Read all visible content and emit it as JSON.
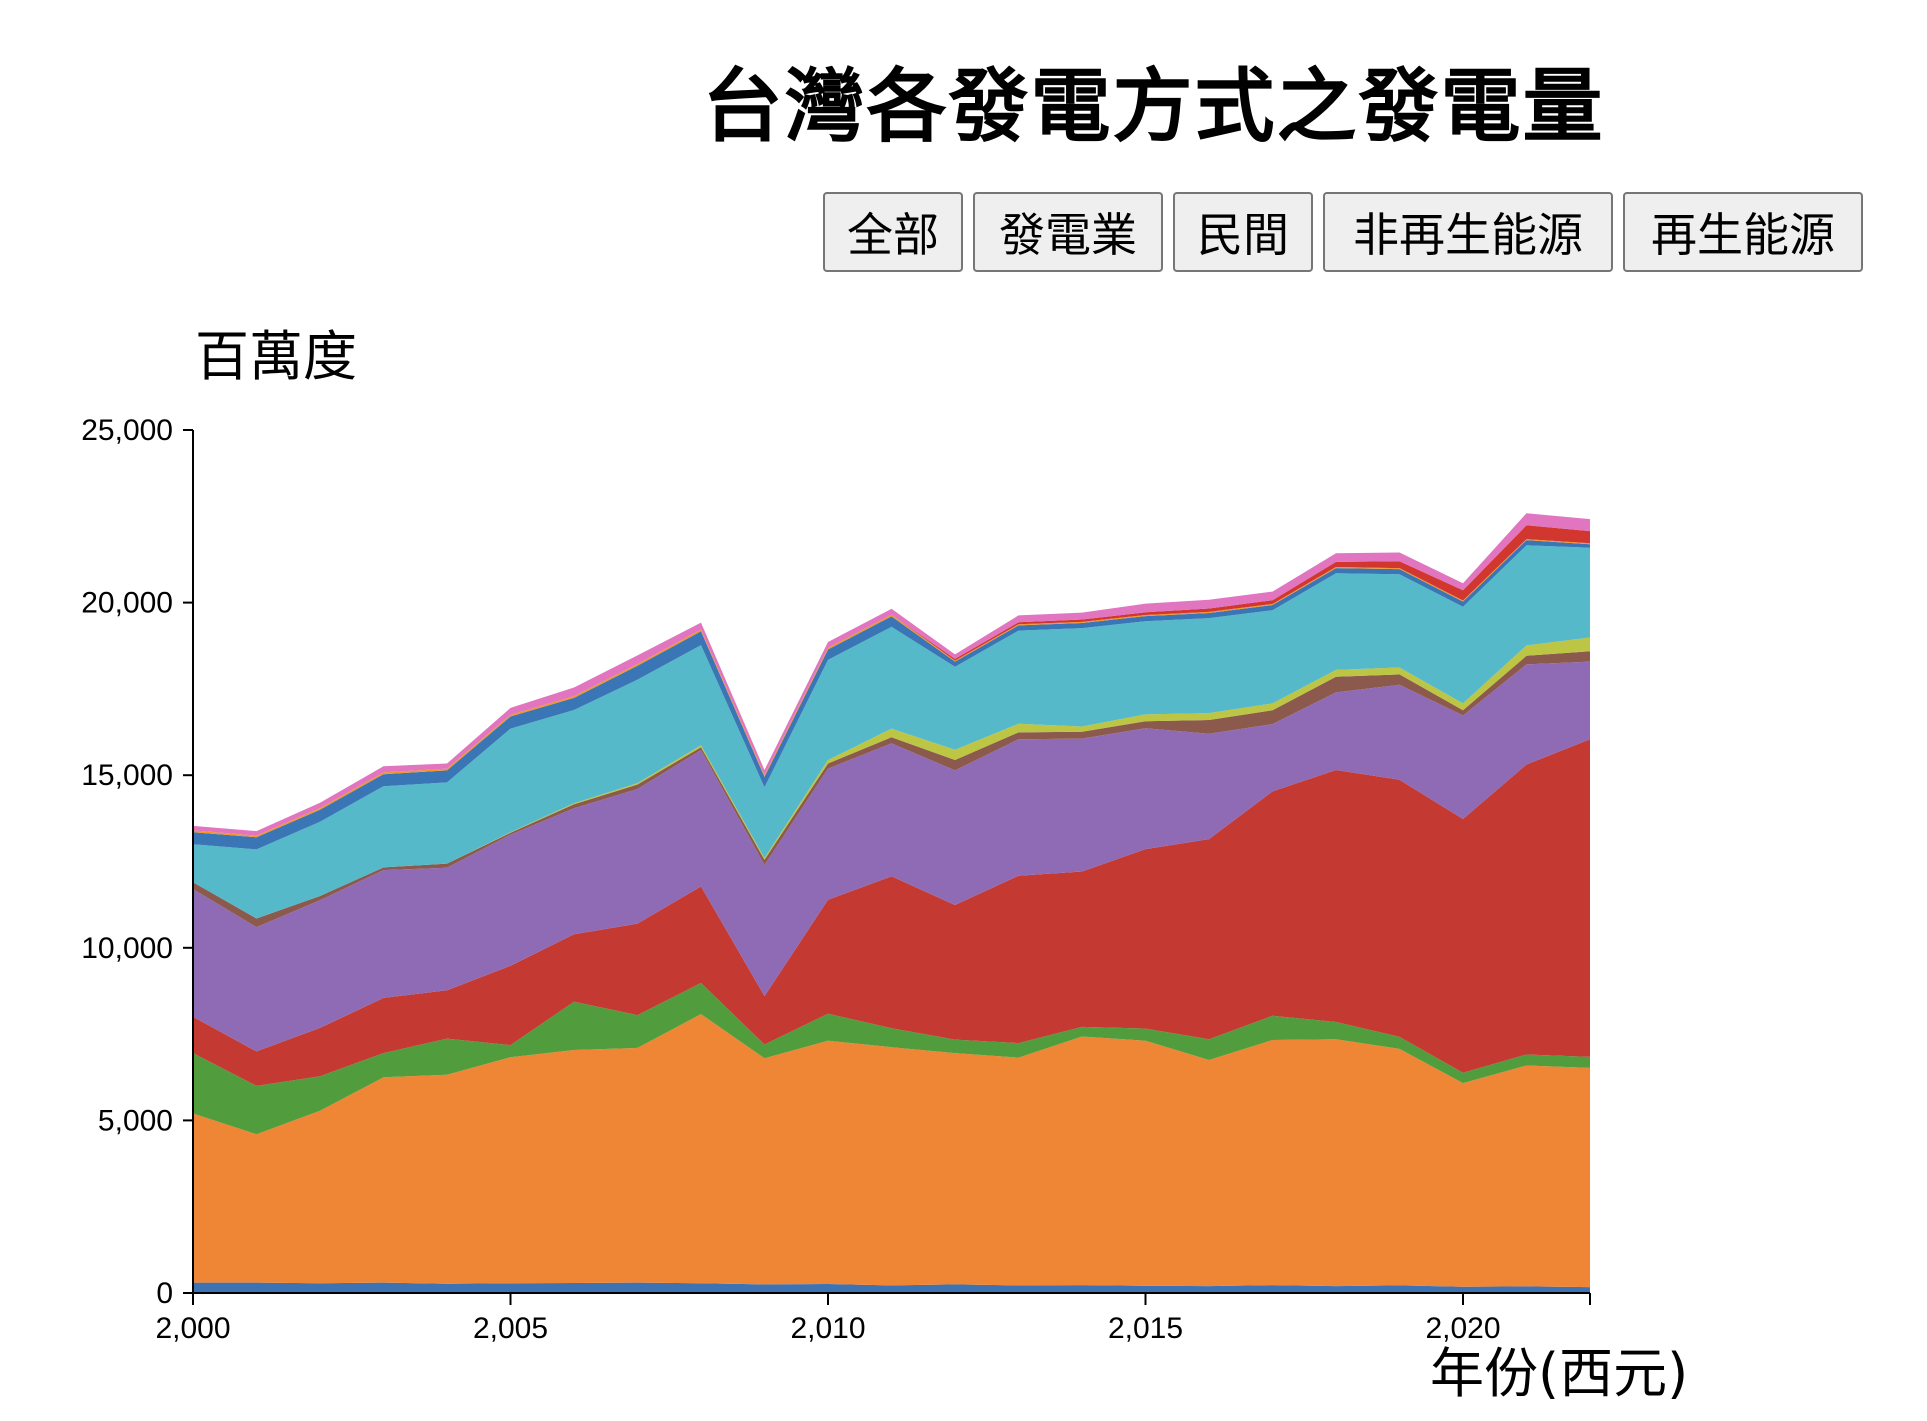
{
  "title": "台灣各發電方式之發電量",
  "buttons": [
    "全部",
    "發電業",
    "民間",
    "非再生能源",
    "再生能源"
  ],
  "chart_data": {
    "type": "area",
    "stacked": true,
    "ylabel": "百萬度",
    "xlabel": "年份(西元)",
    "xlim": [
      2000,
      2022
    ],
    "ylim": [
      0,
      25000
    ],
    "x_ticks": [
      "2,000",
      "2,005",
      "2,010",
      "2,015",
      "2,020"
    ],
    "x_tick_values": [
      2000,
      2005,
      2010,
      2015,
      2020
    ],
    "y_ticks": [
      "0",
      "5,000",
      "10,000",
      "15,000",
      "20,000",
      "25,000"
    ],
    "y_tick_values": [
      0,
      5000,
      10000,
      15000,
      20000,
      25000
    ],
    "x": [
      2000,
      2001,
      2002,
      2003,
      2004,
      2005,
      2006,
      2007,
      2008,
      2009,
      2010,
      2011,
      2012,
      2013,
      2014,
      2015,
      2016,
      2017,
      2018,
      2019,
      2020,
      2021,
      2022
    ],
    "series": [
      {
        "color": "#3d72b3",
        "values": [
          300,
          300,
          280,
          300,
          270,
          280,
          290,
          300,
          280,
          250,
          260,
          220,
          250,
          220,
          230,
          210,
          200,
          230,
          200,
          220,
          180,
          190,
          170
        ]
      },
      {
        "color": "#ef8635",
        "values": [
          4900,
          4300,
          5000,
          5950,
          6050,
          6550,
          6750,
          6800,
          7800,
          6550,
          7050,
          6900,
          6700,
          6600,
          7200,
          7100,
          6550,
          7100,
          7150,
          6850,
          5900,
          6400,
          6350
        ]
      },
      {
        "color": "#519d3d",
        "values": [
          1750,
          1400,
          1000,
          700,
          1050,
          350,
          1400,
          950,
          900,
          400,
          780,
          550,
          390,
          420,
          280,
          350,
          600,
          700,
          500,
          350,
          300,
          320,
          320
        ]
      },
      {
        "color": "#c43a33",
        "values": [
          1050,
          1000,
          1400,
          1600,
          1400,
          2300,
          1950,
          2650,
          2800,
          1400,
          3300,
          4400,
          3900,
          4850,
          4500,
          5200,
          5800,
          6500,
          7300,
          7450,
          7350,
          8400,
          9200
        ]
      },
      {
        "color": "#8f6bb5",
        "values": [
          3700,
          3600,
          3700,
          3700,
          3550,
          3800,
          3650,
          3900,
          3950,
          3800,
          3800,
          3850,
          3900,
          3950,
          3850,
          3500,
          3050,
          1950,
          2250,
          2750,
          3000,
          2900,
          2250
        ]
      },
      {
        "color": "#8c5a4d",
        "values": [
          200,
          250,
          120,
          80,
          120,
          50,
          120,
          130,
          80,
          150,
          150,
          180,
          300,
          200,
          200,
          200,
          400,
          400,
          450,
          300,
          150,
          250,
          300
        ]
      },
      {
        "color": "#bcc544",
        "values": [
          0,
          0,
          0,
          0,
          0,
          20,
          30,
          40,
          60,
          50,
          100,
          250,
          300,
          250,
          150,
          200,
          200,
          200,
          200,
          200,
          200,
          300,
          400
        ]
      },
      {
        "color": "#55b9ca",
        "values": [
          1100,
          2000,
          2150,
          2350,
          2350,
          3000,
          2700,
          3000,
          2900,
          2050,
          2900,
          2950,
          2400,
          2700,
          2850,
          2700,
          2750,
          2700,
          2800,
          2700,
          2800,
          2900,
          2600
        ]
      },
      {
        "color": "#3a75b5",
        "values": [
          350,
          350,
          350,
          350,
          350,
          350,
          350,
          400,
          400,
          300,
          300,
          300,
          150,
          150,
          150,
          150,
          150,
          150,
          150,
          150,
          150,
          150,
          100
        ]
      },
      {
        "color": "#f0962e",
        "values": [
          50,
          50,
          50,
          50,
          50,
          50,
          50,
          50,
          50,
          50,
          50,
          50,
          30,
          30,
          30,
          30,
          30,
          30,
          30,
          30,
          30,
          30,
          30
        ]
      },
      {
        "color": "#d1372f",
        "values": [
          0,
          0,
          0,
          0,
          0,
          0,
          0,
          0,
          0,
          0,
          0,
          0,
          50,
          60,
          70,
          80,
          100,
          110,
          150,
          200,
          300,
          400,
          350
        ]
      },
      {
        "color": "#e175c0",
        "values": [
          130,
          130,
          150,
          180,
          150,
          200,
          250,
          250,
          200,
          150,
          170,
          170,
          130,
          200,
          200,
          250,
          250,
          250,
          250,
          250,
          200,
          350,
          350
        ]
      }
    ]
  }
}
